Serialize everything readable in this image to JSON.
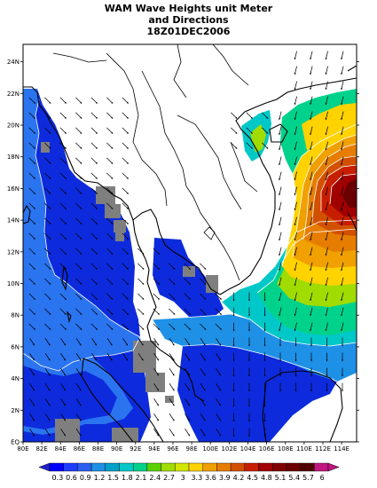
{
  "title": {
    "line1": "WAM Wave Heights unit Meter",
    "line2": "and Directions",
    "line3": "18Z01DEC2006"
  },
  "axes": {
    "x_ticks": [
      "80E",
      "82E",
      "84E",
      "86E",
      "88E",
      "90E",
      "92E",
      "94E",
      "96E",
      "98E",
      "100E",
      "102E",
      "104E",
      "106E",
      "108E",
      "110E",
      "112E",
      "114E"
    ],
    "y_ticks": [
      "EQ",
      "2N",
      "4N",
      "6N",
      "8N",
      "10N",
      "12N",
      "14N",
      "16N",
      "18N",
      "20N",
      "22N",
      "24N"
    ]
  },
  "colorbar": {
    "labels": [
      "0.3",
      "0.6",
      "0.9",
      "1.2",
      "1.5",
      "1.8",
      "2.1",
      "2.4",
      "2.7",
      "3",
      "3.3",
      "3.6",
      "3.9",
      "4.2",
      "4.5",
      "4.8",
      "5.1",
      "5.4",
      "5.7",
      "6"
    ],
    "colors": [
      "#0000ff",
      "#1e3cff",
      "#2a5ef0",
      "#1e90e6",
      "#00a0c8",
      "#00c8c8",
      "#00d28c",
      "#5ad200",
      "#a0dc00",
      "#d2e600",
      "#ffd200",
      "#f0a000",
      "#e67d00",
      "#d25000",
      "#c81e00",
      "#a00000",
      "#820000",
      "#6a0000",
      "#500000",
      "#c01680"
    ]
  },
  "wave_fields": {
    "bay_of_bengal_height": "0.6",
    "gulf_of_thailand_height": "0.6",
    "andaman_sea_height": "0.6",
    "south_china_sea_peak_height": "5.7"
  }
}
